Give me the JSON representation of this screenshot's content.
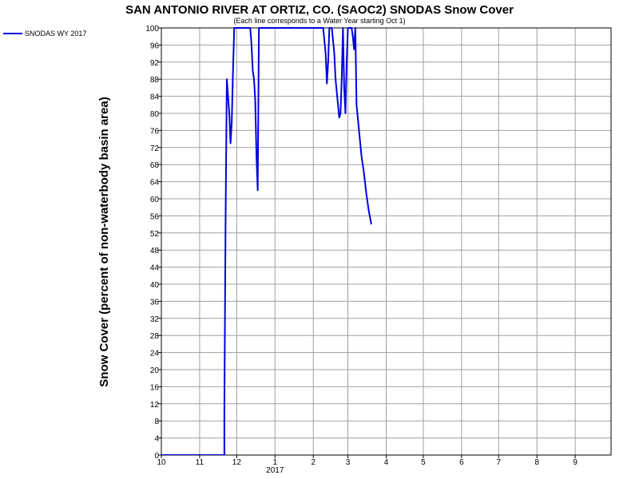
{
  "chart_data": {
    "type": "line",
    "title": "SAN ANTONIO RIVER AT ORTIZ, CO. (SAOC2) SNODAS Snow Cover",
    "subtitle": "(Each line corresponds to a Water Year starting Oct 1)",
    "ylabel": "Snow Cover (percent of non-waterbody basin area)",
    "xlabel": "",
    "ylim": [
      0,
      100
    ],
    "y_ticks": [
      0,
      4,
      8,
      12,
      16,
      20,
      24,
      28,
      32,
      36,
      40,
      44,
      48,
      52,
      56,
      60,
      64,
      68,
      72,
      76,
      80,
      84,
      88,
      92,
      96,
      100
    ],
    "x_range": [
      "2016-10-01",
      "2017-09-30"
    ],
    "x_ticks": [
      {
        "date": "2016-10-01",
        "label": "10"
      },
      {
        "date": "2016-11-01",
        "label": "11"
      },
      {
        "date": "2016-12-01",
        "label": "12"
      },
      {
        "date": "2017-01-01",
        "label": "1"
      },
      {
        "date": "2017-02-01",
        "label": "2"
      },
      {
        "date": "2017-03-01",
        "label": "3"
      },
      {
        "date": "2017-04-01",
        "label": "4"
      },
      {
        "date": "2017-05-01",
        "label": "5"
      },
      {
        "date": "2017-06-01",
        "label": "6"
      },
      {
        "date": "2017-07-01",
        "label": "7"
      },
      {
        "date": "2017-08-01",
        "label": "8"
      },
      {
        "date": "2017-09-01",
        "label": "9"
      }
    ],
    "year_label": "2017",
    "grid": true,
    "legend_position": "top-left",
    "series": [
      {
        "name": "SNODAS WY 2017",
        "color": "#0000dd",
        "points": [
          [
            "2016-10-01",
            0
          ],
          [
            "2016-11-21",
            0
          ],
          [
            "2016-11-21",
            10
          ],
          [
            "2016-11-22",
            55
          ],
          [
            "2016-11-23",
            88
          ],
          [
            "2016-11-24",
            84
          ],
          [
            "2016-11-25",
            80
          ],
          [
            "2016-11-26",
            73
          ],
          [
            "2016-11-27",
            78
          ],
          [
            "2016-11-28",
            90
          ],
          [
            "2016-11-29",
            100
          ],
          [
            "2016-12-12",
            100
          ],
          [
            "2016-12-13",
            96
          ],
          [
            "2016-12-14",
            90
          ],
          [
            "2016-12-15",
            88
          ],
          [
            "2016-12-16",
            83
          ],
          [
            "2016-12-17",
            70
          ],
          [
            "2016-12-18",
            62
          ],
          [
            "2016-12-19",
            100
          ],
          [
            "2017-02-09",
            100
          ],
          [
            "2017-02-11",
            94
          ],
          [
            "2017-02-12",
            87
          ],
          [
            "2017-02-13",
            92
          ],
          [
            "2017-02-14",
            100
          ],
          [
            "2017-02-16",
            100
          ],
          [
            "2017-02-18",
            94
          ],
          [
            "2017-02-19",
            88
          ],
          [
            "2017-02-20",
            85
          ],
          [
            "2017-02-22",
            79
          ],
          [
            "2017-02-23",
            80
          ],
          [
            "2017-02-24",
            88
          ],
          [
            "2017-02-25",
            100
          ],
          [
            "2017-02-26",
            86
          ],
          [
            "2017-02-27",
            80
          ],
          [
            "2017-02-28",
            92
          ],
          [
            "2017-03-01",
            100
          ],
          [
            "2017-03-04",
            100
          ],
          [
            "2017-03-05",
            98
          ],
          [
            "2017-03-06",
            95
          ],
          [
            "2017-03-07",
            100
          ],
          [
            "2017-03-08",
            82
          ],
          [
            "2017-03-10",
            76
          ],
          [
            "2017-03-12",
            70
          ],
          [
            "2017-03-14",
            66
          ],
          [
            "2017-03-16",
            61
          ],
          [
            "2017-03-18",
            57
          ],
          [
            "2017-03-20",
            54
          ]
        ]
      }
    ]
  }
}
